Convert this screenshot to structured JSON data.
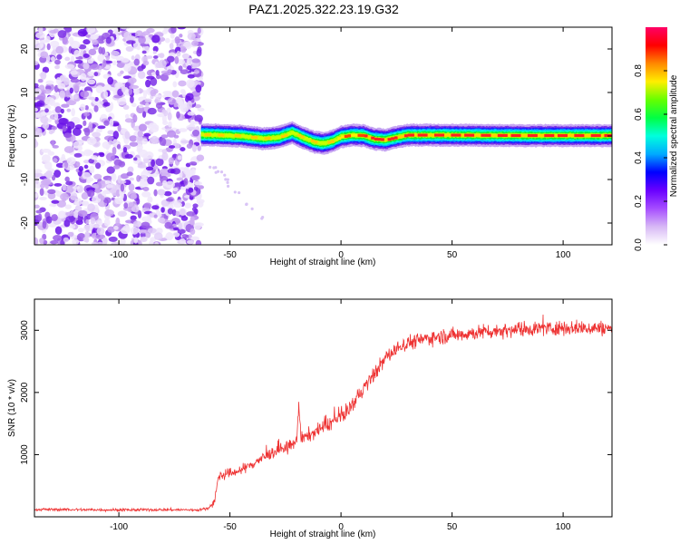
{
  "figure_title": "PAZ1.2025.322.23.19.G32",
  "chart_data": [
    {
      "type": "heatmap",
      "title": "PAZ1.2025.322.23.19.G32",
      "xlabel": "Height of straight line (km)",
      "ylabel": "Frequency (Hz)",
      "xlim": [
        -138,
        122
      ],
      "ylim": [
        -25,
        25
      ],
      "x_ticks": [
        -100,
        -50,
        0,
        50,
        100
      ],
      "y_ticks": [
        -20,
        -10,
        0,
        10,
        20
      ],
      "noise_region_x": [
        -138,
        -63
      ],
      "ridge": {
        "description": "main spectral line",
        "x": [
          -63,
          -55,
          -45,
          -35,
          -28,
          -22,
          -18,
          -12,
          -8,
          -4,
          0,
          5,
          10,
          15,
          20,
          25,
          30,
          50,
          80,
          100,
          122
        ],
        "freq": [
          0.3,
          0.2,
          0.0,
          -0.6,
          -0.3,
          0.8,
          -0.2,
          -1.4,
          -1.7,
          -1.2,
          -0.2,
          0.2,
          0.1,
          -0.7,
          -0.9,
          -0.3,
          0.2,
          0.2,
          0.1,
          0.1,
          0.1
        ],
        "amplitude": [
          0.55,
          0.7,
          0.7,
          0.72,
          0.7,
          0.75,
          0.7,
          0.75,
          0.75,
          0.72,
          0.85,
          0.9,
          0.9,
          0.92,
          0.95,
          0.95,
          0.95,
          0.95,
          0.95,
          0.95,
          0.9
        ]
      },
      "colorbar": {
        "label": "Normalized spectral amplitude",
        "range": [
          0,
          1
        ],
        "ticks": [
          "0.0",
          "0.2",
          "0.4",
          "0.6",
          "0.8"
        ],
        "colormap": [
          "#ffffff",
          "#d7b8f5",
          "#a64dff",
          "#6a00ff",
          "#0000ff",
          "#00aaff",
          "#00ffdd",
          "#00ff44",
          "#66ff00",
          "#ffee00",
          "#ff8800",
          "#ff0000",
          "#ff0066"
        ]
      }
    },
    {
      "type": "line",
      "xlabel": "Height of straight line (km)",
      "ylabel": "SNR (10 * v/v)",
      "xlim": [
        -138,
        122
      ],
      "ylim": [
        0,
        3500
      ],
      "x_ticks": [
        -100,
        -50,
        0,
        50,
        100
      ],
      "y_ticks": [
        1000,
        2000,
        3000
      ],
      "color": "#ee3333",
      "series": [
        {
          "name": "SNR",
          "x": [
            -138,
            -120,
            -100,
            -80,
            -65,
            -60,
            -57,
            -55,
            -50,
            -45,
            -40,
            -35,
            -30,
            -25,
            -20,
            -19,
            -18,
            -15,
            -10,
            -5,
            0,
            5,
            10,
            15,
            20,
            25,
            30,
            40,
            50,
            60,
            70,
            80,
            90,
            100,
            110,
            122
          ],
          "y": [
            120,
            115,
            110,
            115,
            110,
            130,
            250,
            650,
            700,
            750,
            850,
            950,
            1050,
            1100,
            1200,
            1850,
            1250,
            1300,
            1400,
            1500,
            1600,
            1800,
            2050,
            2300,
            2550,
            2700,
            2800,
            2880,
            2920,
            2960,
            2990,
            3020,
            3030,
            3040,
            3040,
            3030
          ]
        }
      ],
      "noise_amplitude_low": 25,
      "noise_amplitude_high": 130
    }
  ]
}
